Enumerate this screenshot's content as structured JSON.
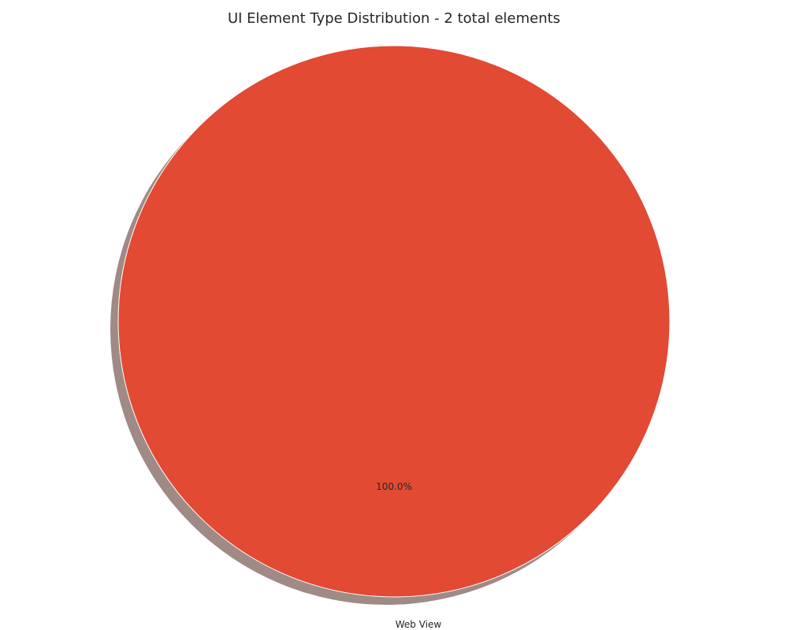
{
  "chart_data": {
    "type": "pie",
    "title": "UI Element Type Distribution - 2 total elements",
    "slices": [
      {
        "label": "Web View",
        "value": 2,
        "percent_label": "100.0%",
        "color": "#e24a33"
      }
    ],
    "shadow_color": "#a08a85",
    "edge_color": "#ffffff"
  }
}
